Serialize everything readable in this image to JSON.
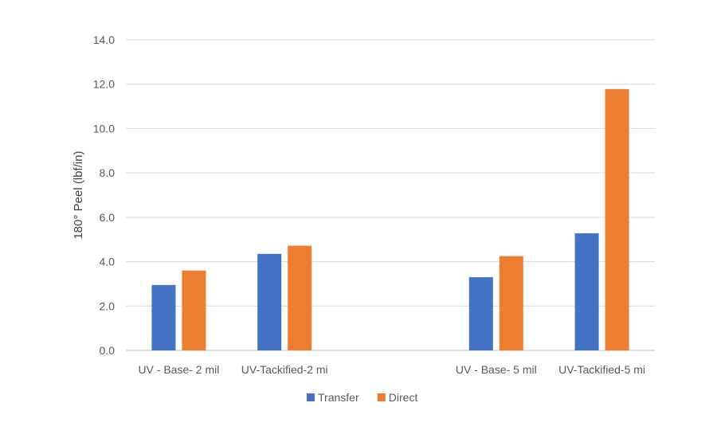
{
  "chart_data": {
    "type": "bar",
    "categories": [
      "UV - Base- 2 mil",
      "UV-Tackified-2 mi",
      "",
      "UV - Base- 5 mil",
      "UV-Tackified-5 mi"
    ],
    "series": [
      {
        "name": "Transfer",
        "color": "#4472C4",
        "values": [
          2.95,
          4.35,
          null,
          3.3,
          5.28
        ]
      },
      {
        "name": "Direct",
        "color": "#ED7D31",
        "values": [
          3.6,
          4.72,
          null,
          4.25,
          11.78
        ]
      }
    ],
    "ylabel": "180° Peel (lbf/in)",
    "xlabel": "",
    "ylim": [
      0,
      14
    ],
    "yticks": [
      "0.0",
      "2.0",
      "4.0",
      "6.0",
      "8.0",
      "10.0",
      "12.0",
      "14.0"
    ],
    "grid": true,
    "legend_position": "bottom"
  }
}
